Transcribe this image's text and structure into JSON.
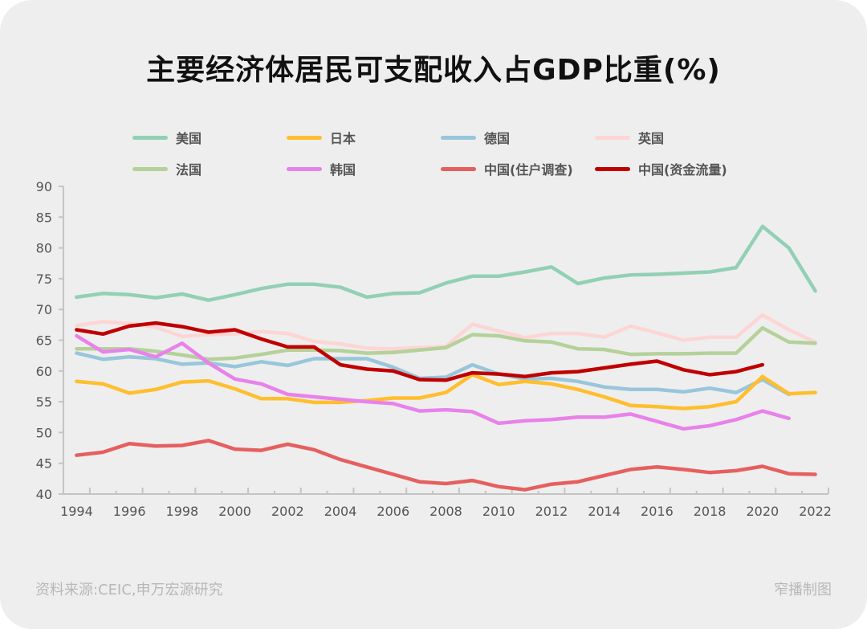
{
  "title": "主要经济体居民可支配收入占GDP比重(%)",
  "footer": {
    "source": "资料来源:CEIC,申万宏源研究",
    "credit": "窄播制图"
  },
  "chart_data": {
    "type": "line",
    "title": "主要经济体居民可支配收入占GDP比重(%)",
    "xlabel": "",
    "ylabel": "",
    "ylim": [
      40,
      90
    ],
    "yticks": [
      40,
      45,
      50,
      55,
      60,
      65,
      70,
      75,
      80,
      85,
      90
    ],
    "xtick_labels": [
      "1994",
      "1996",
      "1998",
      "2000",
      "2002",
      "2004",
      "2006",
      "2008",
      "2010",
      "2012",
      "2014",
      "2016",
      "2018",
      "2020",
      "2022"
    ],
    "grid": false,
    "legend_position": "top",
    "x": [
      1994,
      1995,
      1996,
      1997,
      1998,
      1999,
      2000,
      2001,
      2002,
      2003,
      2004,
      2005,
      2006,
      2007,
      2008,
      2009,
      2010,
      2011,
      2012,
      2013,
      2014,
      2015,
      2016,
      2017,
      2018,
      2019,
      2020,
      2021,
      2022
    ],
    "series": [
      {
        "name": "美国",
        "color": "#92d0b4",
        "values": [
          72.0,
          72.6,
          72.4,
          71.9,
          72.5,
          71.5,
          72.4,
          73.4,
          74.1,
          74.1,
          73.6,
          72.0,
          72.6,
          72.7,
          74.3,
          75.4,
          75.4,
          76.1,
          76.9,
          74.2,
          75.1,
          75.6,
          75.7,
          75.9,
          76.1,
          76.8,
          83.5,
          80.0,
          73.0
        ]
      },
      {
        "name": "日本",
        "color": "#ffbe2e",
        "values": [
          58.3,
          57.9,
          56.4,
          57.0,
          58.2,
          58.4,
          57.1,
          55.5,
          55.5,
          54.9,
          54.9,
          55.2,
          55.6,
          55.6,
          56.5,
          59.4,
          57.8,
          58.3,
          57.9,
          57.0,
          55.8,
          54.4,
          54.2,
          53.9,
          54.2,
          55.0,
          59.1,
          56.3,
          56.5
        ]
      },
      {
        "name": "德国",
        "color": "#98c6da",
        "values": [
          62.9,
          61.9,
          62.3,
          62.0,
          61.1,
          61.3,
          60.7,
          61.5,
          60.9,
          62.0,
          62.0,
          62.0,
          60.6,
          58.8,
          59.0,
          61.0,
          59.5,
          58.7,
          58.8,
          58.3,
          57.4,
          57.0,
          57.0,
          56.6,
          57.2,
          56.5,
          58.6,
          56.2,
          null
        ]
      },
      {
        "name": "英国",
        "color": "#fdd5d5",
        "values": [
          67.4,
          68.0,
          67.7,
          67.1,
          65.6,
          65.9,
          66.0,
          66.4,
          66.1,
          64.8,
          64.4,
          63.7,
          63.6,
          63.8,
          64.0,
          67.6,
          66.5,
          65.4,
          66.1,
          66.1,
          65.5,
          67.3,
          66.2,
          65.0,
          65.5,
          65.5,
          69.1,
          66.7,
          64.7
        ]
      },
      {
        "name": "法国",
        "color": "#b5d19a",
        "values": [
          63.6,
          63.6,
          63.6,
          63.2,
          62.6,
          61.9,
          62.1,
          62.7,
          63.4,
          63.4,
          63.3,
          62.9,
          63.0,
          63.4,
          63.8,
          65.9,
          65.7,
          64.9,
          64.7,
          63.6,
          63.5,
          62.7,
          62.8,
          62.8,
          62.9,
          62.9,
          67.0,
          64.7,
          64.5
        ]
      },
      {
        "name": "韩国",
        "color": "#e882ea",
        "values": [
          65.7,
          63.1,
          63.5,
          62.3,
          64.5,
          61.3,
          58.7,
          57.9,
          56.2,
          55.8,
          55.4,
          55.0,
          54.7,
          53.5,
          53.7,
          53.4,
          51.5,
          51.9,
          52.1,
          52.5,
          52.5,
          53.0,
          51.8,
          50.6,
          51.1,
          52.1,
          53.5,
          52.3,
          null
        ]
      },
      {
        "name": "中国(住户调查)",
        "color": "#e65f5f",
        "values": [
          46.3,
          46.8,
          48.2,
          47.8,
          47.9,
          48.7,
          47.3,
          47.1,
          48.1,
          47.2,
          45.6,
          44.4,
          43.2,
          42.0,
          41.7,
          42.2,
          41.2,
          40.7,
          41.6,
          42.0,
          43.0,
          44.0,
          44.4,
          44.0,
          43.5,
          43.8,
          44.5,
          43.3,
          43.2
        ]
      },
      {
        "name": "中国(资金流量)",
        "color": "#c00000",
        "values": [
          66.7,
          66.0,
          67.3,
          67.8,
          67.2,
          66.3,
          66.7,
          65.2,
          63.9,
          63.9,
          61.0,
          60.3,
          60.0,
          58.6,
          58.5,
          59.7,
          59.5,
          59.1,
          59.7,
          59.9,
          60.5,
          61.1,
          61.6,
          60.2,
          59.4,
          59.9,
          61.0,
          null,
          null
        ]
      }
    ]
  }
}
